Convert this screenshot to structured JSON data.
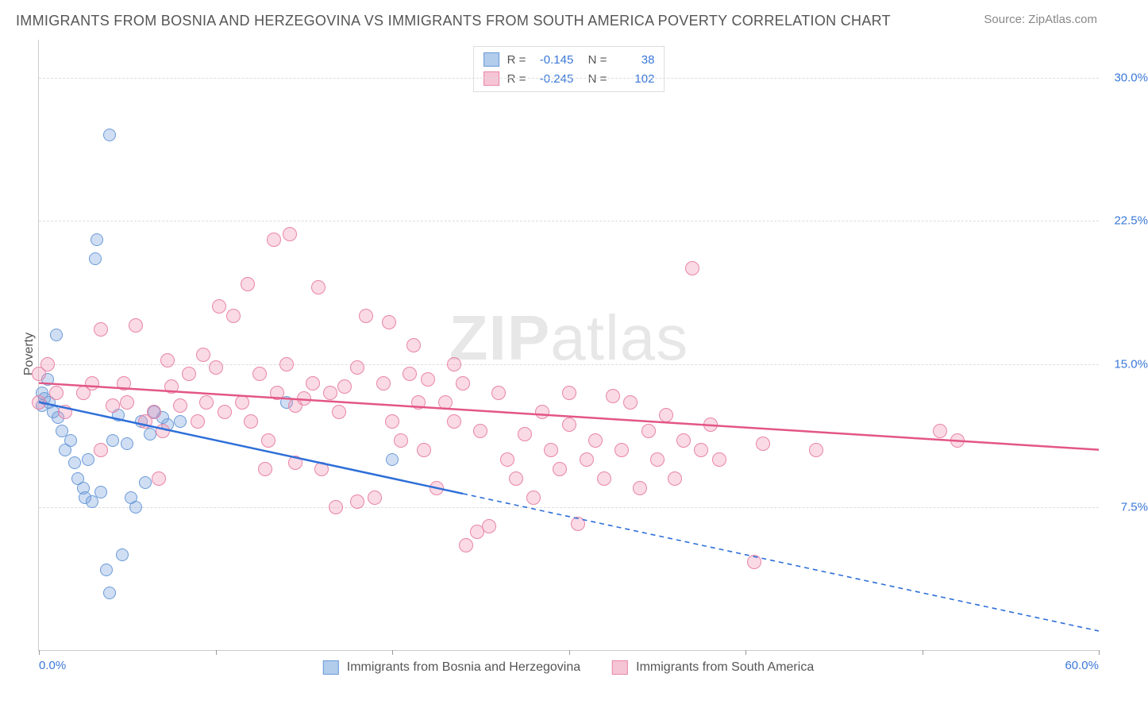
{
  "title": "IMMIGRANTS FROM BOSNIA AND HERZEGOVINA VS IMMIGRANTS FROM SOUTH AMERICA POVERTY CORRELATION CHART",
  "source_label": "Source: ",
  "source_value": "ZipAtlas.com",
  "y_label": "Poverty",
  "watermark_prefix": "ZIP",
  "watermark_suffix": "atlas",
  "chart": {
    "type": "scatter",
    "xlim": [
      0,
      60
    ],
    "ylim": [
      0,
      32
    ],
    "y_ticks": [
      7.5,
      15.0,
      22.5,
      30.0
    ],
    "y_tick_labels": [
      "7.5%",
      "15.0%",
      "22.5%",
      "30.0%"
    ],
    "x_ticks": [
      0,
      10,
      20,
      30,
      40,
      50,
      60
    ],
    "x_tick_labels_shown": {
      "0": "0.0%",
      "60": "60.0%"
    },
    "background_color": "#ffffff",
    "grid_color": "#dddddd",
    "axis_color": "#cccccc",
    "tick_label_color": "#3a78d8",
    "series": [
      {
        "key": "bosnia",
        "label": "Immigrants from Bosnia and Herzegovina",
        "fill": "rgba(120,160,220,0.35)",
        "stroke": "#6a9ad8",
        "line_color": "#2e6fd8",
        "swatch_fill": "#b2ccec",
        "swatch_stroke": "#6a9ad8",
        "marker_radius": 8,
        "correlation_R": "-0.145",
        "sample_N": "38",
        "trend": {
          "x1": 0,
          "y1": 13.0,
          "x2": 24,
          "y2": 8.2,
          "dash_x2": 60,
          "dash_y2": 1.0
        },
        "points": [
          [
            0.2,
            13.5
          ],
          [
            0.2,
            12.8
          ],
          [
            0.3,
            13.2
          ],
          [
            0.5,
            14.2
          ],
          [
            0.6,
            13.0
          ],
          [
            0.8,
            12.5
          ],
          [
            1.0,
            16.5
          ],
          [
            1.1,
            12.2
          ],
          [
            1.3,
            11.5
          ],
          [
            1.5,
            10.5
          ],
          [
            1.8,
            11.0
          ],
          [
            2.0,
            9.8
          ],
          [
            2.2,
            9.0
          ],
          [
            2.5,
            8.5
          ],
          [
            2.6,
            8.0
          ],
          [
            2.8,
            10.0
          ],
          [
            3.0,
            7.8
          ],
          [
            3.2,
            20.5
          ],
          [
            3.3,
            21.5
          ],
          [
            3.5,
            8.3
          ],
          [
            3.8,
            4.2
          ],
          [
            4.0,
            3.0
          ],
          [
            4.2,
            11.0
          ],
          [
            4.5,
            12.3
          ],
          [
            4.7,
            5.0
          ],
          [
            5.0,
            10.8
          ],
          [
            5.2,
            8.0
          ],
          [
            5.5,
            7.5
          ],
          [
            5.8,
            12.0
          ],
          [
            6.0,
            8.8
          ],
          [
            4.0,
            27.0
          ],
          [
            6.3,
            11.3
          ],
          [
            6.5,
            12.5
          ],
          [
            7.0,
            12.2
          ],
          [
            7.3,
            11.8
          ],
          [
            8.0,
            12.0
          ],
          [
            14.0,
            13.0
          ],
          [
            20.0,
            10.0
          ]
        ]
      },
      {
        "key": "south_america",
        "label": "Immigrants from South America",
        "fill": "rgba(240,150,180,0.35)",
        "stroke": "#e885a8",
        "line_color": "#e35685",
        "swatch_fill": "#f6c5d5",
        "swatch_stroke": "#e885a8",
        "marker_radius": 9,
        "correlation_R": "-0.245",
        "sample_N": "102",
        "trend": {
          "x1": 0,
          "y1": 14.0,
          "x2": 60,
          "y2": 10.5
        },
        "points": [
          [
            0,
            14.5
          ],
          [
            0,
            13.0
          ],
          [
            0.5,
            15.0
          ],
          [
            1.0,
            13.5
          ],
          [
            1.5,
            12.5
          ],
          [
            2.5,
            13.5
          ],
          [
            3.0,
            14.0
          ],
          [
            3.5,
            16.8
          ],
          [
            4.2,
            12.8
          ],
          [
            4.8,
            14.0
          ],
          [
            5.0,
            13.0
          ],
          [
            5.5,
            17.0
          ],
          [
            6.0,
            12.0
          ],
          [
            6.5,
            12.5
          ],
          [
            7.0,
            11.5
          ],
          [
            7.3,
            15.2
          ],
          [
            7.5,
            13.8
          ],
          [
            8.0,
            12.8
          ],
          [
            8.5,
            14.5
          ],
          [
            9.0,
            12.0
          ],
          [
            9.5,
            13.0
          ],
          [
            10.0,
            14.8
          ],
          [
            10.2,
            18.0
          ],
          [
            10.5,
            12.5
          ],
          [
            11.0,
            17.5
          ],
          [
            11.5,
            13.0
          ],
          [
            11.8,
            19.2
          ],
          [
            12.0,
            12.0
          ],
          [
            12.5,
            14.5
          ],
          [
            13.0,
            11.0
          ],
          [
            13.3,
            21.5
          ],
          [
            13.5,
            13.5
          ],
          [
            14.0,
            15.0
          ],
          [
            14.2,
            21.8
          ],
          [
            14.5,
            12.8
          ],
          [
            15.0,
            13.2
          ],
          [
            15.5,
            14.0
          ],
          [
            15.8,
            19.0
          ],
          [
            16.0,
            9.5
          ],
          [
            16.5,
            13.5
          ],
          [
            17.0,
            12.5
          ],
          [
            17.3,
            13.8
          ],
          [
            18.0,
            14.8
          ],
          [
            18.5,
            17.5
          ],
          [
            19.0,
            8.0
          ],
          [
            19.5,
            14.0
          ],
          [
            19.8,
            17.2
          ],
          [
            20.0,
            12.0
          ],
          [
            20.5,
            11.0
          ],
          [
            21.0,
            14.5
          ],
          [
            21.5,
            13.0
          ],
          [
            21.8,
            10.5
          ],
          [
            22.0,
            14.2
          ],
          [
            22.5,
            8.5
          ],
          [
            23.0,
            13.0
          ],
          [
            23.5,
            12.0
          ],
          [
            24.0,
            14.0
          ],
          [
            24.2,
            5.5
          ],
          [
            24.8,
            6.2
          ],
          [
            25.0,
            11.5
          ],
          [
            25.5,
            6.5
          ],
          [
            26.0,
            13.5
          ],
          [
            26.5,
            10.0
          ],
          [
            27.0,
            9.0
          ],
          [
            27.5,
            11.3
          ],
          [
            28.0,
            8.0
          ],
          [
            28.5,
            12.5
          ],
          [
            29.0,
            10.5
          ],
          [
            29.5,
            9.5
          ],
          [
            30.0,
            11.8
          ],
          [
            30.5,
            6.6
          ],
          [
            31.0,
            10.0
          ],
          [
            31.5,
            11.0
          ],
          [
            32.0,
            9.0
          ],
          [
            33.0,
            10.5
          ],
          [
            33.5,
            13.0
          ],
          [
            34.0,
            8.5
          ],
          [
            34.5,
            11.5
          ],
          [
            35.0,
            10.0
          ],
          [
            36.0,
            9.0
          ],
          [
            36.5,
            11.0
          ],
          [
            37.0,
            20.0
          ],
          [
            37.5,
            10.5
          ],
          [
            38.0,
            11.8
          ],
          [
            38.5,
            10.0
          ],
          [
            40.5,
            4.6
          ],
          [
            41.0,
            10.8
          ],
          [
            44.0,
            10.5
          ],
          [
            51.0,
            11.5
          ],
          [
            52.0,
            11.0
          ],
          [
            3.5,
            10.5
          ],
          [
            6.8,
            9.0
          ],
          [
            9.3,
            15.5
          ],
          [
            12.8,
            9.5
          ],
          [
            14.5,
            9.8
          ],
          [
            16.8,
            7.5
          ],
          [
            18.0,
            7.8
          ],
          [
            21.2,
            16.0
          ],
          [
            23.5,
            15.0
          ],
          [
            30.0,
            13.5
          ],
          [
            32.5,
            13.3
          ],
          [
            35.5,
            12.3
          ]
        ]
      }
    ]
  }
}
